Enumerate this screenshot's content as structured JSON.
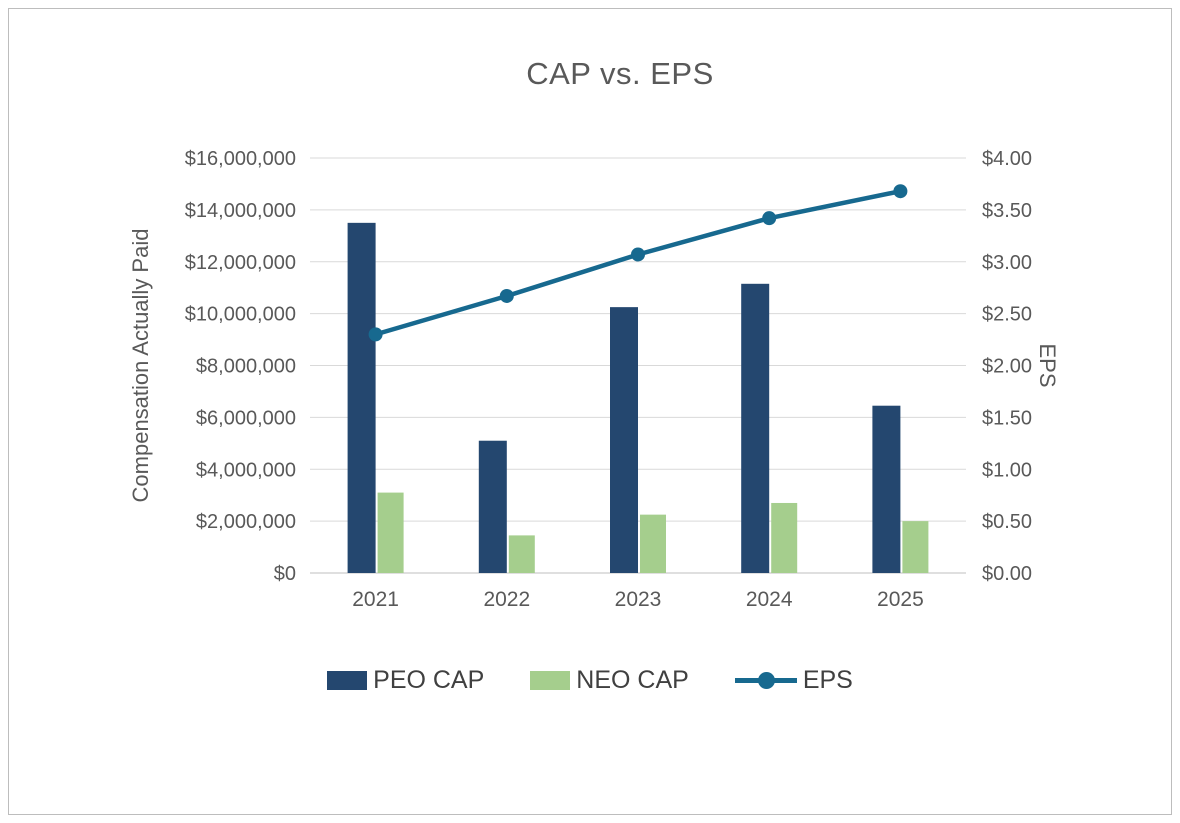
{
  "chart_data": {
    "type": "bar",
    "subtype": "combo-bar-line",
    "title": "CAP vs. EPS",
    "categories": [
      "2021",
      "2022",
      "2023",
      "2024",
      "2025"
    ],
    "bar_series": [
      {
        "name": "PEO CAP",
        "color": "#24476F",
        "values": [
          13500000,
          5100000,
          10250000,
          11150000,
          6450000
        ]
      },
      {
        "name": "NEO CAP",
        "color": "#A5CE8D",
        "values": [
          3100000,
          1450000,
          2250000,
          2700000,
          2000000
        ]
      }
    ],
    "line_series": {
      "name": "EPS",
      "color": "#17698F",
      "axis": "right",
      "values": [
        2.3,
        2.67,
        3.07,
        3.42,
        3.68
      ]
    },
    "axes": {
      "left": {
        "label": "Compensation Actually Paid",
        "min": 0,
        "max": 16000000,
        "ticks": [
          0,
          2000000,
          4000000,
          6000000,
          8000000,
          10000000,
          12000000,
          14000000,
          16000000
        ],
        "tick_labels": [
          "$0",
          "$2,000,000",
          "$4,000,000",
          "$6,000,000",
          "$8,000,000",
          "$10,000,000",
          "$12,000,000",
          "$14,000,000",
          "$16,000,000"
        ]
      },
      "right": {
        "label": "EPS",
        "min": 0,
        "max": 4,
        "ticks": [
          0,
          0.5,
          1,
          1.5,
          2,
          2.5,
          3,
          3.5,
          4
        ],
        "tick_labels": [
          "$0.00",
          "$0.50",
          "$1.00",
          "$1.50",
          "$2.00",
          "$2.50",
          "$3.00",
          "$3.50",
          "$4.00"
        ]
      }
    },
    "grid": "horizontal",
    "legend": {
      "position": "bottom",
      "entries": [
        "PEO CAP",
        "NEO CAP",
        "EPS"
      ]
    }
  }
}
